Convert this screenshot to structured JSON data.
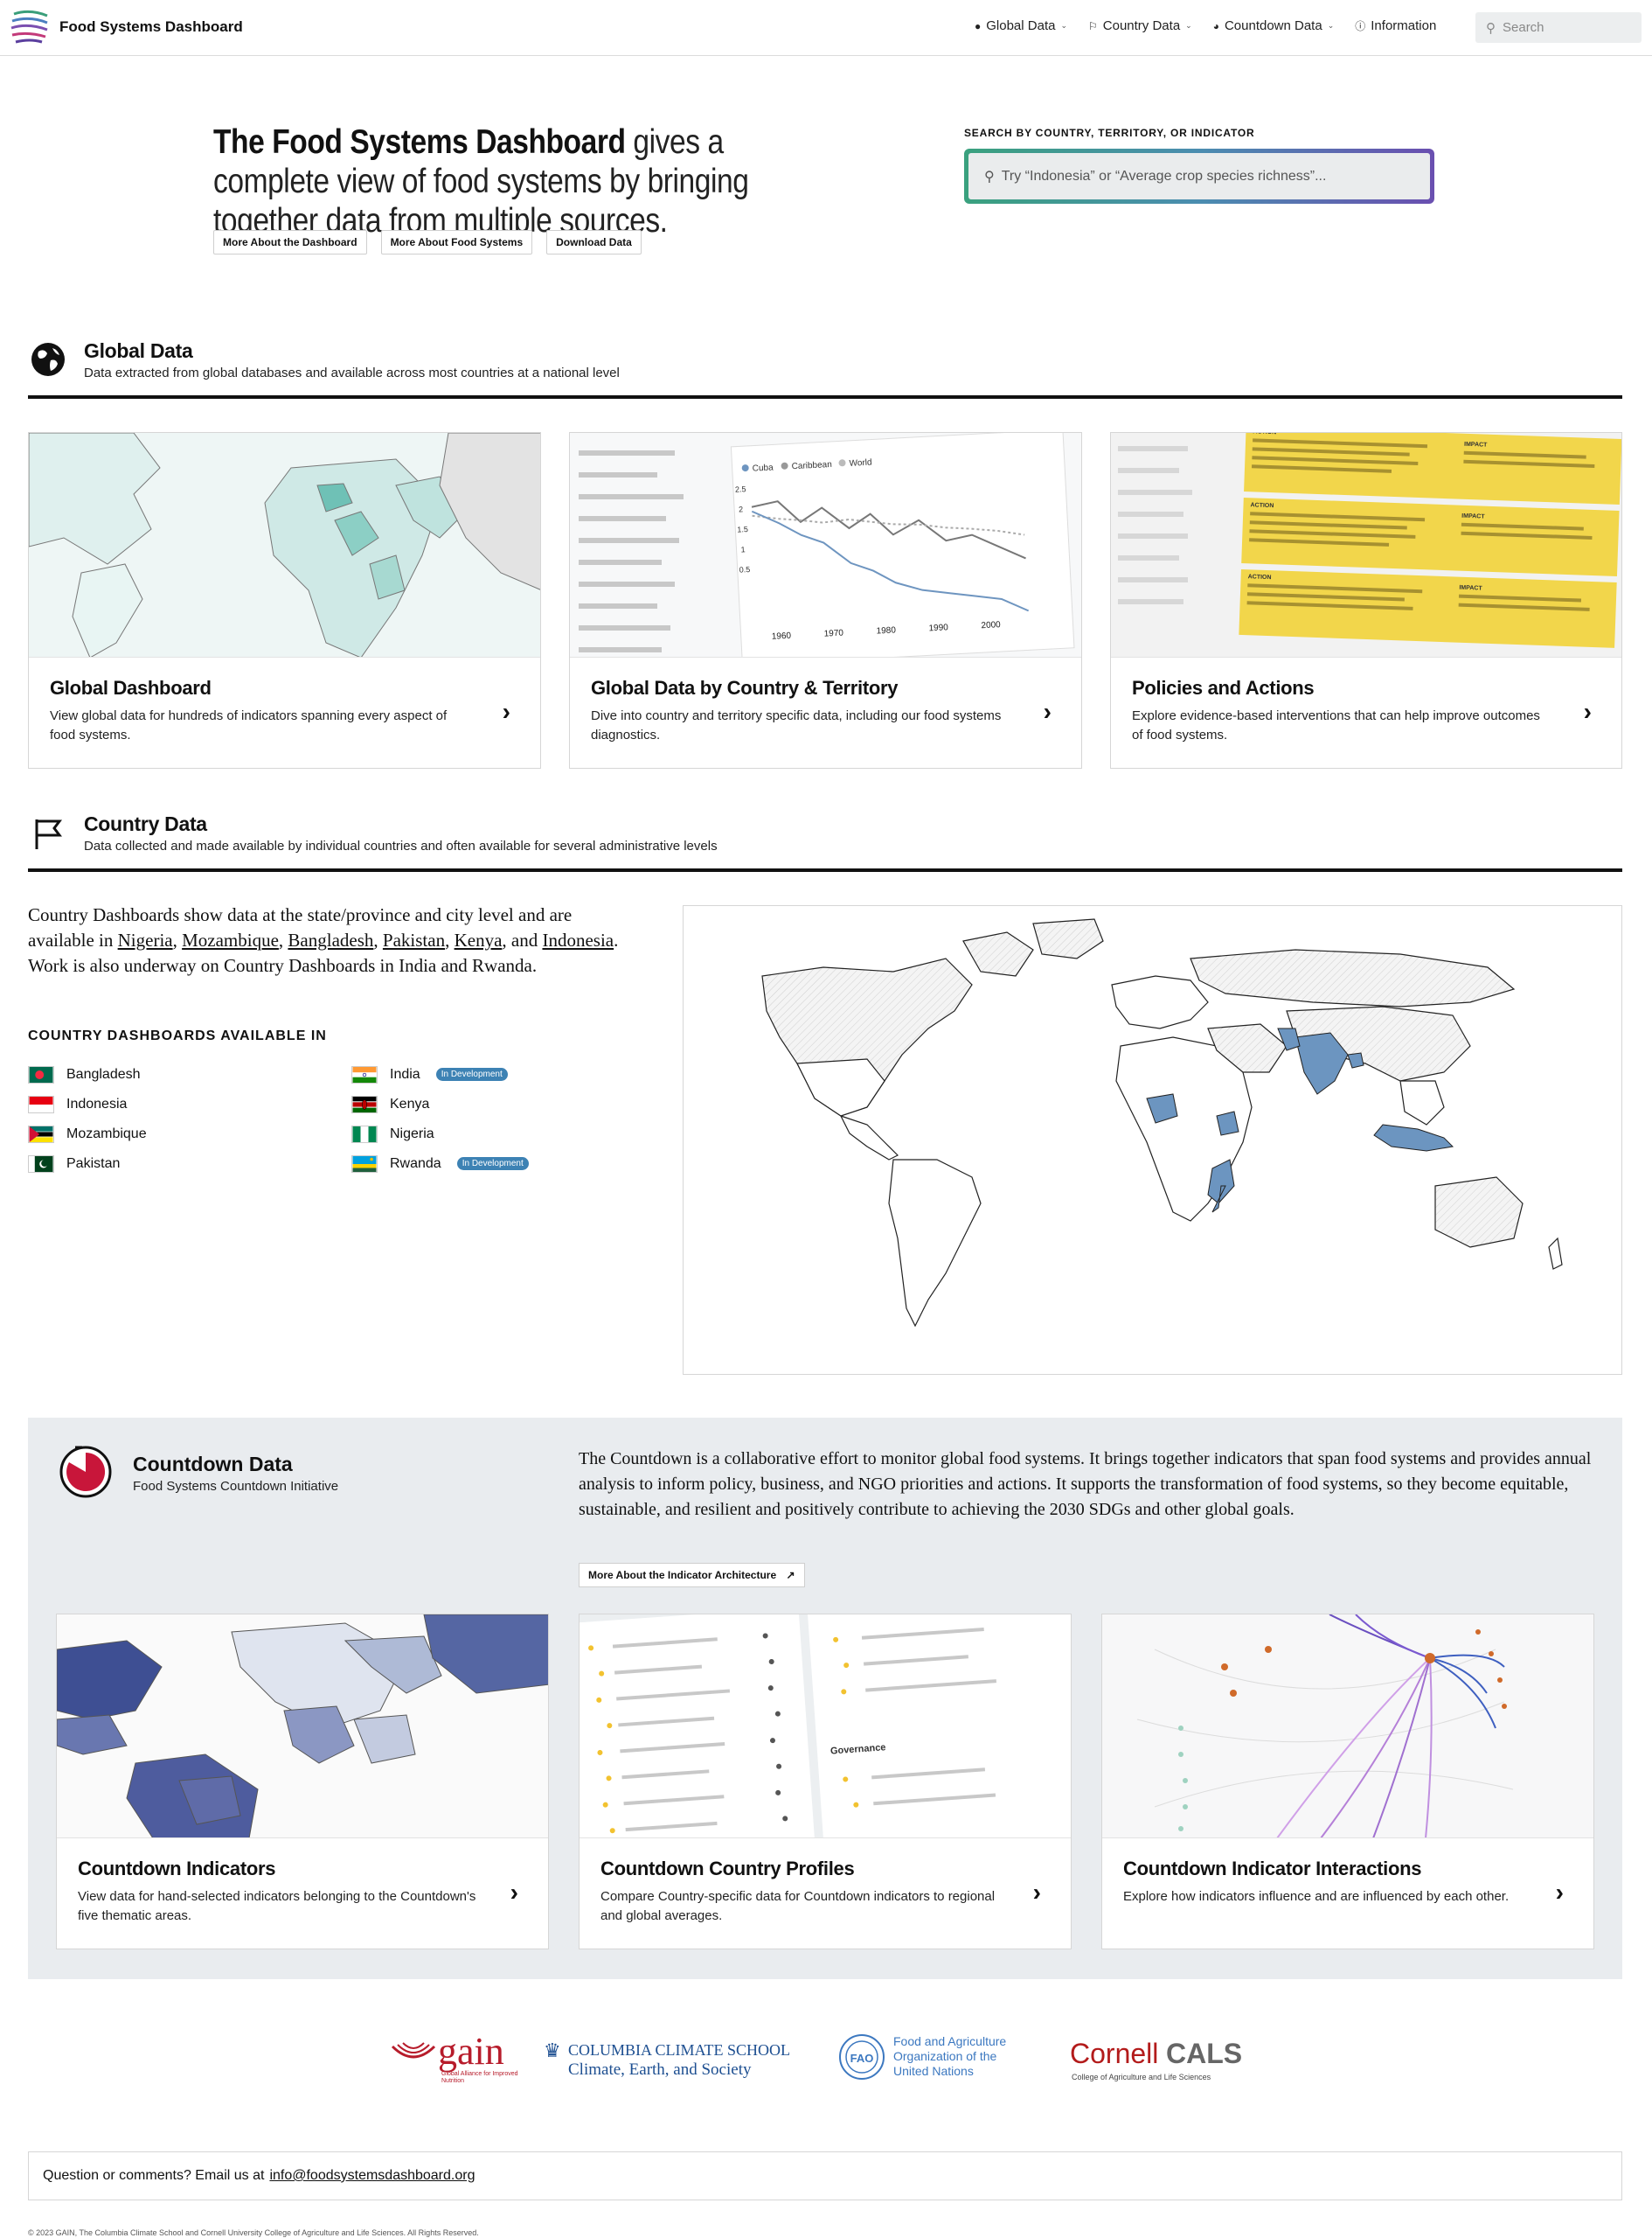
{
  "nav": {
    "brand": "Food Systems Dashboard",
    "items": [
      {
        "label": "Global Data",
        "icon": "globe-icon",
        "has_menu": true
      },
      {
        "label": "Country Data",
        "icon": "flag-icon",
        "has_menu": true
      },
      {
        "label": "Countdown Data",
        "icon": "clock-icon",
        "has_menu": true
      },
      {
        "label": "Information",
        "icon": "info-icon",
        "has_menu": false
      }
    ],
    "search_placeholder": "Search"
  },
  "hero": {
    "title_bold": "The Food Systems Dashboard",
    "title_rest": " gives a complete view of food systems by bringing together data from multiple sources.",
    "buttons": [
      "More About the Dashboard",
      "More About Food Systems",
      "Download Data"
    ],
    "search_label": "SEARCH BY COUNTRY, TERRITORY, OR INDICATOR",
    "search_placeholder": "Try “Indonesia” or “Average crop species richness”..."
  },
  "global": {
    "title": "Global Data",
    "subtitle": "Data extracted from global databases and available across most countries at a national level",
    "cards": [
      {
        "title": "Global Dashboard",
        "desc": "View global data for hundreds of indicators spanning every aspect of food systems."
      },
      {
        "title": "Global Data by Country & Territory",
        "desc": "Dive into country and territory specific data, including our food systems diagnostics."
      },
      {
        "title": "Policies and Actions",
        "desc": "Explore evidence-based interventions that can help improve outcomes of food systems."
      }
    ],
    "chart_preview": {
      "legend": [
        "Cuba",
        "Caribbean",
        "World"
      ],
      "y_ticks": [
        "2.5",
        "2",
        "1.5",
        "1",
        "0.5"
      ],
      "x_ticks": [
        "1960",
        "1970",
        "1980",
        "1990",
        "2000"
      ]
    },
    "policy_preview": {
      "action_label": "ACTION",
      "impact_label": "IMPACT"
    }
  },
  "country": {
    "title": "Country Data",
    "subtitle": "Data collected and made available by individual countries and often available for several administrative levels",
    "intro_start": "Country Dashboards show data at the state/province and city level and are available in ",
    "links": [
      "Nigeria",
      "Mozambique",
      "Bangladesh",
      "Pakistan",
      "Kenya",
      "Indonesia"
    ],
    "intro_and": ", and ",
    "intro_end": ". Work is also underway on Country Dashboards in India and Rwanda.",
    "available_heading": "COUNTRY DASHBOARDS AVAILABLE IN",
    "countries": [
      {
        "name": "Bangladesh",
        "badge": "",
        "flag": "bd"
      },
      {
        "name": "India",
        "badge": "In Development",
        "flag": "in"
      },
      {
        "name": "Indonesia",
        "badge": "",
        "flag": "id"
      },
      {
        "name": "Kenya",
        "badge": "",
        "flag": "ke"
      },
      {
        "name": "Mozambique",
        "badge": "",
        "flag": "mz"
      },
      {
        "name": "Nigeria",
        "badge": "",
        "flag": "ng"
      },
      {
        "name": "Pakistan",
        "badge": "",
        "flag": "pk"
      },
      {
        "name": "Rwanda",
        "badge": "In Development",
        "flag": "rw"
      }
    ]
  },
  "countdown": {
    "title": "Countdown Data",
    "subtitle": "Food Systems Countdown Initiative",
    "text": "The Countdown is a collaborative effort to monitor global food systems. It brings together indicators that span food systems and provides annual analysis to inform policy, business, and NGO priorities and actions. It supports the transformation of food systems, so they become equitable, sustainable, and resilient and positively contribute to achieving the 2030 SDGs and other global goals.",
    "button": "More About the Indicator Architecture",
    "profile_preview_heading": "Governance",
    "cards": [
      {
        "title": "Countdown Indicators",
        "desc": "View data for hand-selected indicators belonging to the Countdown's five thematic areas."
      },
      {
        "title": "Countdown Country Profiles",
        "desc": "Compare Country-specific data for Countdown indicators to regional and global averages."
      },
      {
        "title": "Countdown Indicator Interactions",
        "desc": "Explore how indicators influence and are influenced by each other."
      }
    ]
  },
  "partners": {
    "gain": "gain",
    "gain_sub": "Global Alliance for Improved Nutrition",
    "columbia_1": "COLUMBIA CLIMATE SCHOOL",
    "columbia_2": "Climate, Earth, and Society",
    "fao_mark": "FAO",
    "fao": [
      "Food and Agriculture",
      "Organization of the",
      "United Nations"
    ],
    "cornell_light": "Cornell",
    "cornell_bold": "CALS",
    "cornell_sub": "College of Agriculture and Life Sciences"
  },
  "footer": {
    "question": "Question or comments? Email us at",
    "email": "info@foodsystemsdashboard.org",
    "copyright": "© 2023 GAIN, The Columbia Climate School and Cornell University College of Agriculture and Life Sciences. All Rights Reserved."
  },
  "colors": {
    "accent_blue": "#3d82b4",
    "map_highlight": "#6c95c0",
    "countdown_red": "#c8163a",
    "gain_red": "#b71c2b",
    "policy_yellow": "#f2d64b",
    "panel_grey": "#e9ecef"
  }
}
